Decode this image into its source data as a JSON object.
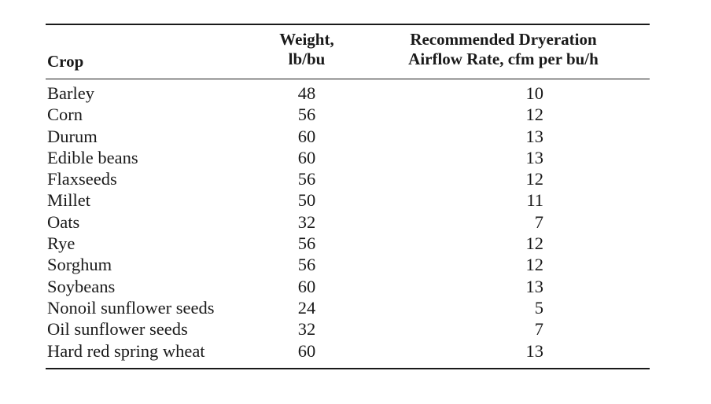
{
  "table": {
    "headers": {
      "crop": "Crop",
      "weight_line1": "Weight,",
      "weight_line2": "lb/bu",
      "airflow_line1": "Recommended Dryeration",
      "airflow_line2": "Airflow Rate, cfm per bu/h"
    },
    "rows": [
      {
        "crop": "Barley",
        "weight": "48",
        "airflow": "10"
      },
      {
        "crop": "Corn",
        "weight": "56",
        "airflow": "12"
      },
      {
        "crop": "Durum",
        "weight": "60",
        "airflow": "13"
      },
      {
        "crop": "Edible beans",
        "weight": "60",
        "airflow": "13"
      },
      {
        "crop": "Flaxseeds",
        "weight": "56",
        "airflow": "12"
      },
      {
        "crop": "Millet",
        "weight": "50",
        "airflow": "11"
      },
      {
        "crop": "Oats",
        "weight": "32",
        "airflow": "7"
      },
      {
        "crop": "Rye",
        "weight": "56",
        "airflow": "12"
      },
      {
        "crop": "Sorghum",
        "weight": "56",
        "airflow": "12"
      },
      {
        "crop": "Soybeans",
        "weight": "60",
        "airflow": "13"
      },
      {
        "crop": "Nonoil sunflower seeds",
        "weight": "24",
        "airflow": "5"
      },
      {
        "crop": "Oil sunflower seeds",
        "weight": "32",
        "airflow": "7"
      },
      {
        "crop": "Hard red spring wheat",
        "weight": "60",
        "airflow": "13"
      }
    ]
  }
}
